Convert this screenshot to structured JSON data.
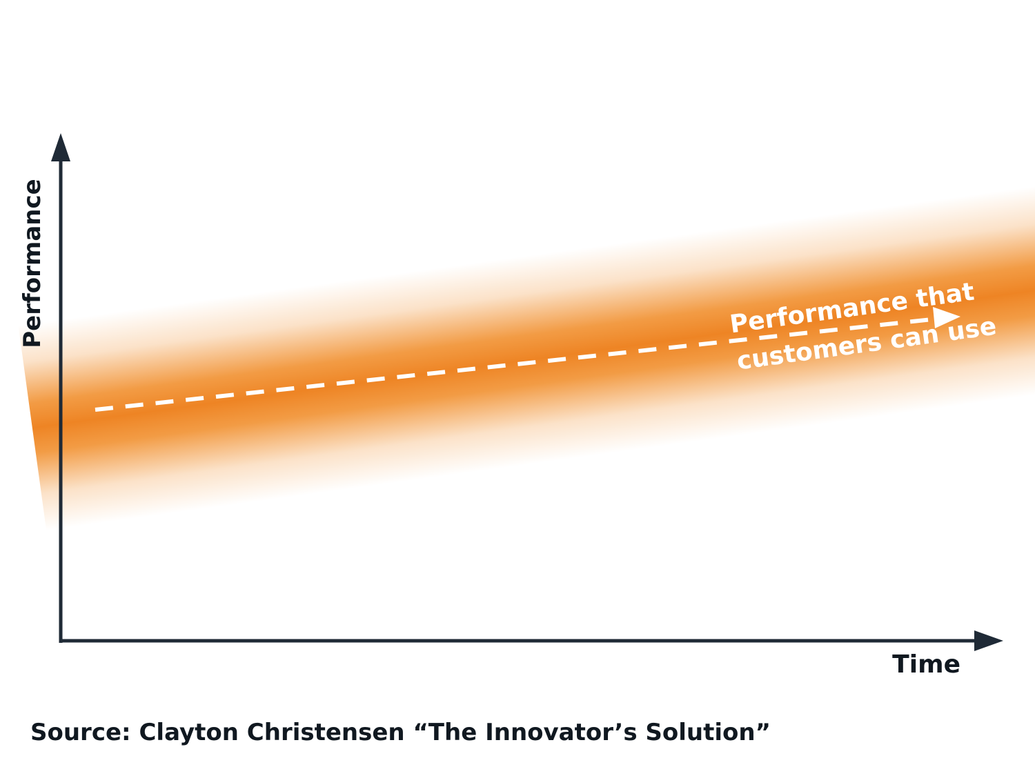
{
  "axes": {
    "y_label": "Performance",
    "x_label": "Time"
  },
  "band": {
    "label_line1": "Performance that",
    "label_line2": "customers can use",
    "band_color": "#f08a24",
    "line_color": "#ffffff",
    "line_style": "dashed",
    "direction": "rising"
  },
  "axis_color": "#1f2a36",
  "source": "Source: Clayton Christensen “The Innovator’s Solution”"
}
